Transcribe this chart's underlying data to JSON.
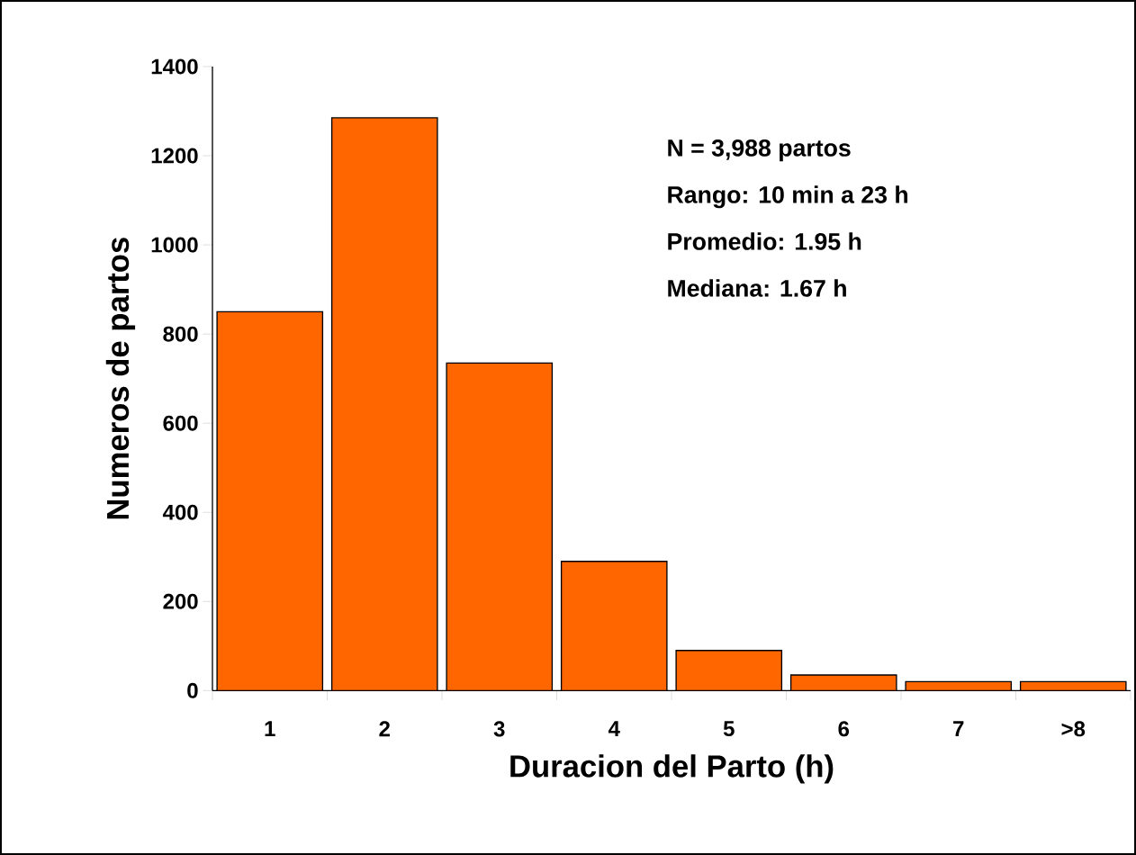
{
  "chart_data": {
    "type": "bar",
    "xlabel": "Duracion del Parto (h)",
    "ylabel": "Numeros de partos",
    "categories": [
      "1",
      "2",
      "3",
      "4",
      "5",
      "6",
      "7",
      ">8"
    ],
    "values": [
      850,
      1285,
      735,
      290,
      90,
      35,
      20,
      20
    ],
    "color": "#ff6600",
    "ylim": [
      0,
      1400
    ],
    "yticks": [
      0,
      200,
      400,
      600,
      800,
      1000,
      1200,
      1400
    ],
    "grid": false,
    "annotations": [
      "N = 3,988 partos",
      "Rango: 10 min a 23 h",
      "Promedio: 1.95 h",
      "Mediana: 1.67 h"
    ]
  }
}
